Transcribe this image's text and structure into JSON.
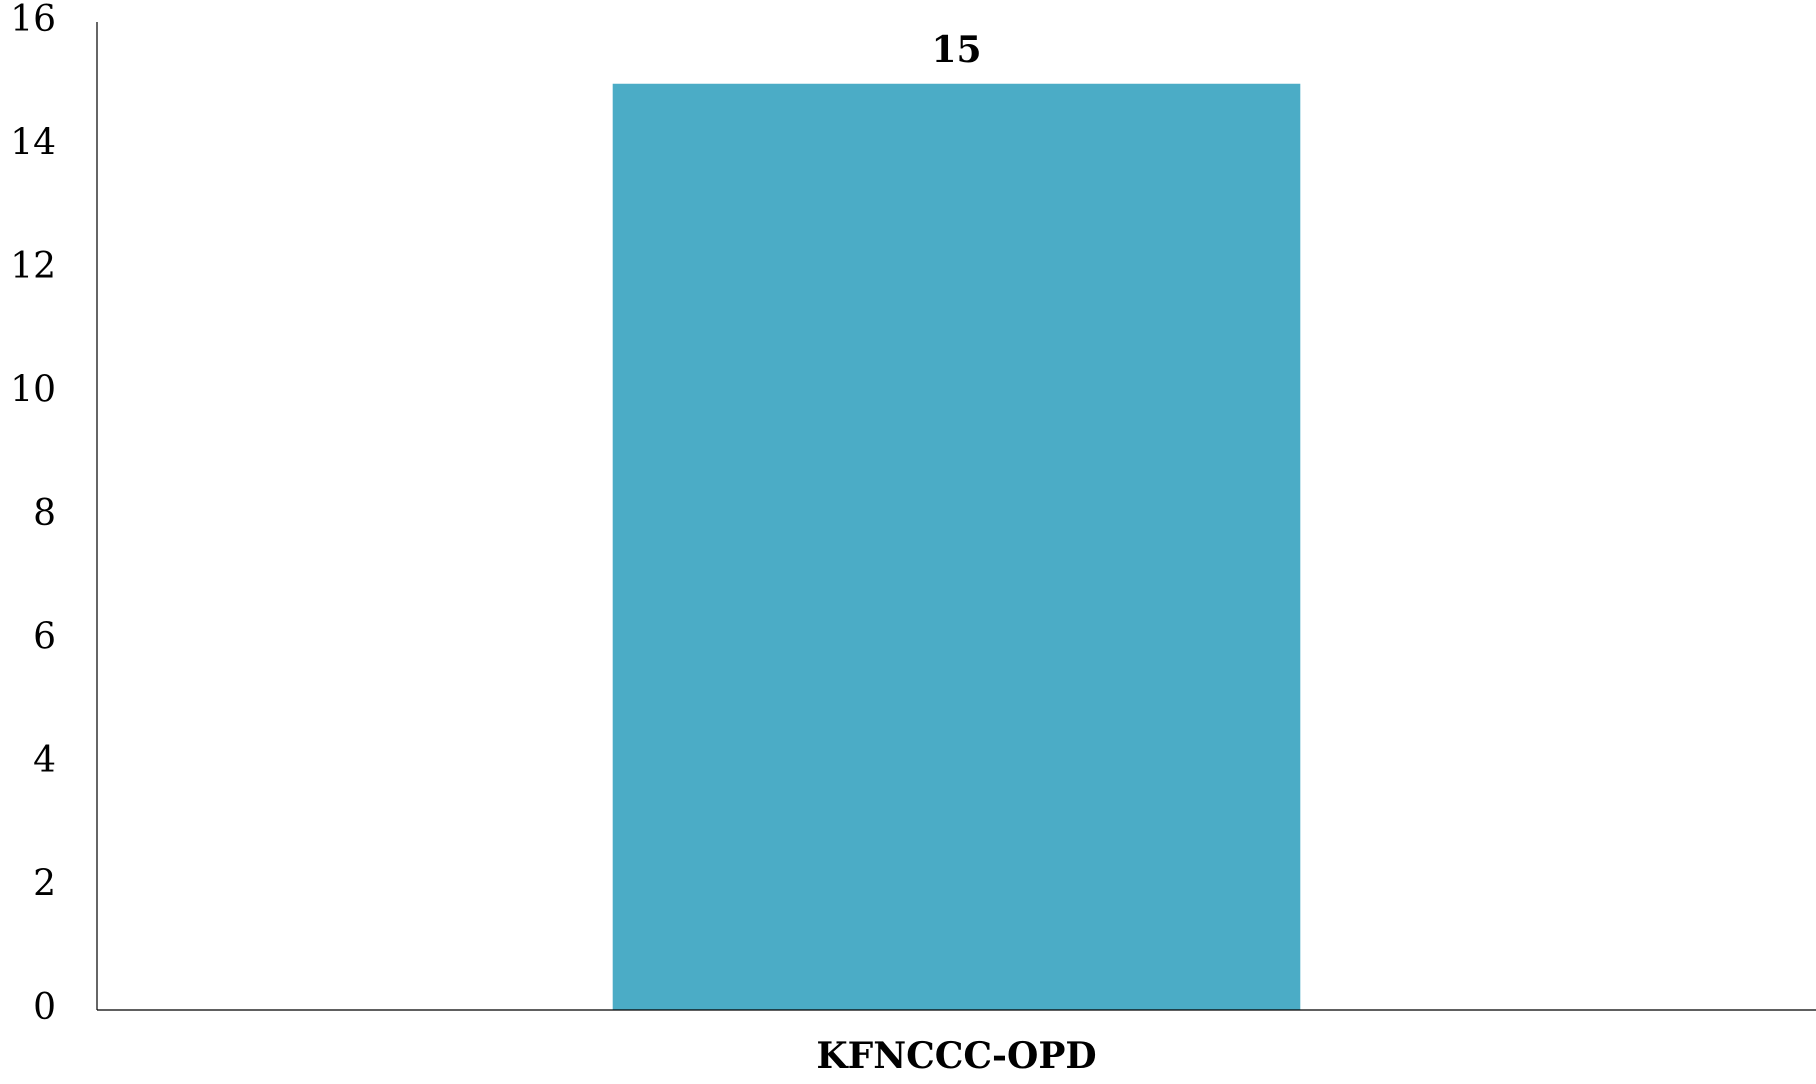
{
  "chart_data": {
    "type": "bar",
    "categories": [
      "KFNCCC-OPD"
    ],
    "values": [
      15
    ],
    "data_labels": [
      "15"
    ],
    "title": "",
    "xlabel": "",
    "ylabel": "",
    "ylim": [
      0,
      16
    ],
    "y_ticks": [
      0,
      2,
      4,
      6,
      8,
      10,
      12,
      14,
      16
    ],
    "grid": false,
    "legend": "none",
    "bar_color": "#4BACC6"
  }
}
